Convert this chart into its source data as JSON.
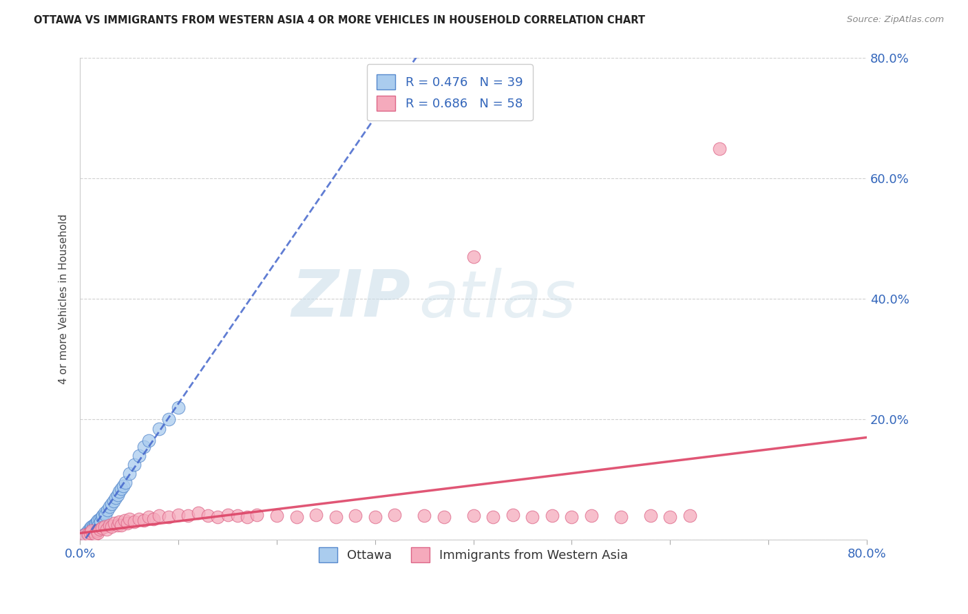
{
  "title": "OTTAWA VS IMMIGRANTS FROM WESTERN ASIA 4 OR MORE VEHICLES IN HOUSEHOLD CORRELATION CHART",
  "source": "Source: ZipAtlas.com",
  "ylabel": "4 or more Vehicles in Household",
  "xlim": [
    0.0,
    0.8
  ],
  "ylim": [
    0.0,
    0.8
  ],
  "xtick_positions": [
    0.0,
    0.1,
    0.2,
    0.3,
    0.4,
    0.5,
    0.6,
    0.7,
    0.8
  ],
  "xticklabels": [
    "0.0%",
    "",
    "",
    "",
    "",
    "",
    "",
    "",
    "80.0%"
  ],
  "ytick_positions": [
    0.0,
    0.2,
    0.4,
    0.6,
    0.8
  ],
  "yticklabels_right": [
    "",
    "20.0%",
    "40.0%",
    "60.0%",
    "80.0%"
  ],
  "grid_color": "#d0d0d0",
  "background_color": "#ffffff",
  "watermark_text": "ZIPatlas",
  "watermark_color": "#d8e8f0",
  "legend_r1": "R = 0.476",
  "legend_n1": "N = 39",
  "legend_r2": "R = 0.686",
  "legend_n2": "N = 58",
  "ottawa_face_color": "#aaccee",
  "ottawa_edge_color": "#5588cc",
  "immigrants_face_color": "#f5aabc",
  "immigrants_edge_color": "#dd6688",
  "trend_ottawa_color": "#4466cc",
  "trend_immigrants_color": "#dd4466",
  "legend_label_ottawa": "Ottawa",
  "legend_label_immigrants": "Immigrants from Western Asia",
  "ottawa_x": [
    0.005,
    0.007,
    0.008,
    0.009,
    0.01,
    0.01,
    0.011,
    0.012,
    0.013,
    0.014,
    0.015,
    0.016,
    0.017,
    0.018,
    0.019,
    0.02,
    0.021,
    0.022,
    0.023,
    0.025,
    0.026,
    0.028,
    0.03,
    0.032,
    0.034,
    0.036,
    0.038,
    0.04,
    0.042,
    0.044,
    0.046,
    0.05,
    0.055,
    0.06,
    0.065,
    0.07,
    0.08,
    0.09,
    0.1
  ],
  "ottawa_y": [
    0.01,
    0.012,
    0.015,
    0.01,
    0.015,
    0.02,
    0.018,
    0.022,
    0.02,
    0.025,
    0.025,
    0.028,
    0.03,
    0.032,
    0.025,
    0.035,
    0.03,
    0.038,
    0.04,
    0.045,
    0.042,
    0.05,
    0.055,
    0.06,
    0.065,
    0.07,
    0.075,
    0.08,
    0.085,
    0.09,
    0.095,
    0.11,
    0.125,
    0.14,
    0.155,
    0.165,
    0.185,
    0.2,
    0.22
  ],
  "immigrants_x": [
    0.005,
    0.008,
    0.01,
    0.012,
    0.015,
    0.017,
    0.018,
    0.02,
    0.022,
    0.025,
    0.027,
    0.03,
    0.032,
    0.035,
    0.038,
    0.04,
    0.042,
    0.045,
    0.048,
    0.05,
    0.055,
    0.06,
    0.065,
    0.07,
    0.075,
    0.08,
    0.09,
    0.1,
    0.11,
    0.12,
    0.13,
    0.14,
    0.15,
    0.16,
    0.17,
    0.18,
    0.2,
    0.22,
    0.24,
    0.26,
    0.28,
    0.3,
    0.32,
    0.35,
    0.37,
    0.4,
    0.42,
    0.44,
    0.46,
    0.48,
    0.5,
    0.52,
    0.55,
    0.58,
    0.6,
    0.62,
    0.65,
    0.4
  ],
  "immigrants_y": [
    0.008,
    0.01,
    0.012,
    0.015,
    0.01,
    0.015,
    0.012,
    0.018,
    0.02,
    0.022,
    0.018,
    0.025,
    0.022,
    0.028,
    0.025,
    0.03,
    0.025,
    0.032,
    0.028,
    0.035,
    0.03,
    0.035,
    0.032,
    0.038,
    0.035,
    0.04,
    0.038,
    0.042,
    0.04,
    0.045,
    0.04,
    0.038,
    0.042,
    0.04,
    0.038,
    0.042,
    0.04,
    0.038,
    0.042,
    0.038,
    0.04,
    0.038,
    0.042,
    0.04,
    0.038,
    0.04,
    0.038,
    0.042,
    0.038,
    0.04,
    0.038,
    0.04,
    0.038,
    0.04,
    0.038,
    0.04,
    0.65,
    0.47
  ]
}
